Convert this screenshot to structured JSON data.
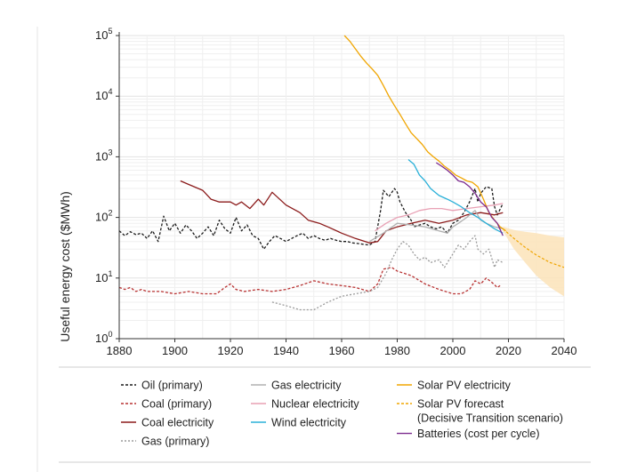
{
  "chart_data": {
    "type": "line",
    "title": "",
    "ylabel": "Useful energy cost ($MWh)",
    "xlabel": "",
    "yscale": "log",
    "xlim": [
      1880,
      2040
    ],
    "ylim": [
      1,
      100000
    ],
    "x_ticks": [
      1880,
      1900,
      1920,
      1940,
      1960,
      1980,
      2000,
      2020,
      2040
    ],
    "y_ticks": [
      {
        "value": 1,
        "base": "10",
        "exp": "0"
      },
      {
        "value": 10,
        "base": "10",
        "exp": "1"
      },
      {
        "value": 100,
        "base": "10",
        "exp": "2"
      },
      {
        "value": 1000,
        "base": "10",
        "exp": "3"
      },
      {
        "value": 10000,
        "base": "10",
        "exp": "4"
      },
      {
        "value": 100000,
        "base": "10",
        "exp": "5"
      }
    ],
    "grid": true,
    "legend_position": "bottom",
    "series": [
      {
        "name": "Oil (primary)",
        "color": "#1a1a1a",
        "dash": "3,2",
        "points": [
          [
            1880,
            60
          ],
          [
            1882,
            50
          ],
          [
            1884,
            58
          ],
          [
            1886,
            52
          ],
          [
            1888,
            55
          ],
          [
            1890,
            45
          ],
          [
            1892,
            60
          ],
          [
            1894,
            40
          ],
          [
            1896,
            105
          ],
          [
            1898,
            60
          ],
          [
            1900,
            80
          ],
          [
            1902,
            55
          ],
          [
            1904,
            75
          ],
          [
            1906,
            60
          ],
          [
            1908,
            45
          ],
          [
            1910,
            55
          ],
          [
            1912,
            70
          ],
          [
            1914,
            50
          ],
          [
            1916,
            90
          ],
          [
            1918,
            65
          ],
          [
            1920,
            55
          ],
          [
            1922,
            100
          ],
          [
            1924,
            60
          ],
          [
            1926,
            75
          ],
          [
            1928,
            50
          ],
          [
            1930,
            45
          ],
          [
            1932,
            30
          ],
          [
            1934,
            40
          ],
          [
            1936,
            50
          ],
          [
            1938,
            45
          ],
          [
            1940,
            40
          ],
          [
            1942,
            45
          ],
          [
            1944,
            50
          ],
          [
            1946,
            55
          ],
          [
            1948,
            45
          ],
          [
            1950,
            50
          ],
          [
            1952,
            45
          ],
          [
            1954,
            42
          ],
          [
            1956,
            45
          ],
          [
            1958,
            42
          ],
          [
            1960,
            40
          ],
          [
            1962,
            40
          ],
          [
            1964,
            38
          ],
          [
            1966,
            37
          ],
          [
            1968,
            36
          ],
          [
            1970,
            35
          ],
          [
            1972,
            40
          ],
          [
            1974,
            130
          ],
          [
            1975,
            280
          ],
          [
            1977,
            220
          ],
          [
            1979,
            300
          ],
          [
            1980,
            260
          ],
          [
            1981,
            180
          ],
          [
            1983,
            120
          ],
          [
            1985,
            90
          ],
          [
            1986,
            70
          ],
          [
            1988,
            75
          ],
          [
            1990,
            80
          ],
          [
            1992,
            70
          ],
          [
            1994,
            65
          ],
          [
            1996,
            70
          ],
          [
            1998,
            55
          ],
          [
            2000,
            80
          ],
          [
            2002,
            90
          ],
          [
            2004,
            120
          ],
          [
            2006,
            180
          ],
          [
            2008,
            300
          ],
          [
            2009,
            180
          ],
          [
            2010,
            250
          ],
          [
            2012,
            320
          ],
          [
            2014,
            300
          ],
          [
            2015,
            150
          ],
          [
            2016,
            110
          ],
          [
            2018,
            170
          ]
        ]
      },
      {
        "name": "Coal (primary)",
        "color": "#b83232",
        "dash": "3,2",
        "points": [
          [
            1880,
            7
          ],
          [
            1882,
            6.5
          ],
          [
            1884,
            7
          ],
          [
            1886,
            6
          ],
          [
            1888,
            6.5
          ],
          [
            1890,
            6
          ],
          [
            1895,
            6
          ],
          [
            1900,
            5.5
          ],
          [
            1905,
            6
          ],
          [
            1910,
            5.5
          ],
          [
            1915,
            5.5
          ],
          [
            1918,
            7
          ],
          [
            1920,
            8
          ],
          [
            1922,
            6.5
          ],
          [
            1925,
            6
          ],
          [
            1930,
            6.5
          ],
          [
            1935,
            6
          ],
          [
            1940,
            6.5
          ],
          [
            1945,
            7.5
          ],
          [
            1950,
            9
          ],
          [
            1955,
            8
          ],
          [
            1960,
            7.5
          ],
          [
            1965,
            7
          ],
          [
            1970,
            6
          ],
          [
            1973,
            8
          ],
          [
            1975,
            14
          ],
          [
            1978,
            15
          ],
          [
            1980,
            13
          ],
          [
            1985,
            11
          ],
          [
            1990,
            8
          ],
          [
            1995,
            6.5
          ],
          [
            2000,
            5.5
          ],
          [
            2003,
            5.5
          ],
          [
            2006,
            6.5
          ],
          [
            2008,
            9
          ],
          [
            2010,
            8
          ],
          [
            2012,
            10
          ],
          [
            2014,
            8.5
          ],
          [
            2016,
            7
          ],
          [
            2017,
            7.5
          ]
        ]
      },
      {
        "name": "Coal electricity",
        "color": "#8b1a1a",
        "dash": "",
        "points": [
          [
            1902,
            400
          ],
          [
            1905,
            350
          ],
          [
            1910,
            280
          ],
          [
            1913,
            200
          ],
          [
            1916,
            180
          ],
          [
            1920,
            180
          ],
          [
            1922,
            160
          ],
          [
            1924,
            180
          ],
          [
            1927,
            140
          ],
          [
            1930,
            200
          ],
          [
            1932,
            160
          ],
          [
            1935,
            260
          ],
          [
            1940,
            160
          ],
          [
            1945,
            120
          ],
          [
            1948,
            90
          ],
          [
            1952,
            80
          ],
          [
            1955,
            70
          ],
          [
            1960,
            55
          ],
          [
            1965,
            45
          ],
          [
            1970,
            38
          ],
          [
            1973,
            40
          ],
          [
            1976,
            60
          ],
          [
            1980,
            70
          ],
          [
            1985,
            80
          ],
          [
            1990,
            90
          ],
          [
            1995,
            80
          ],
          [
            2000,
            90
          ],
          [
            2005,
            110
          ],
          [
            2010,
            120
          ],
          [
            2015,
            110
          ],
          [
            2018,
            120
          ]
        ]
      },
      {
        "name": "Gas (primary)",
        "color": "#9a9a9a",
        "dash": "2,2",
        "points": [
          [
            1935,
            4
          ],
          [
            1940,
            3.5
          ],
          [
            1945,
            3
          ],
          [
            1950,
            3
          ],
          [
            1955,
            4
          ],
          [
            1960,
            5
          ],
          [
            1965,
            5.5
          ],
          [
            1970,
            6
          ],
          [
            1973,
            7
          ],
          [
            1976,
            12
          ],
          [
            1978,
            20
          ],
          [
            1980,
            30
          ],
          [
            1982,
            40
          ],
          [
            1984,
            35
          ],
          [
            1986,
            25
          ],
          [
            1988,
            20
          ],
          [
            1990,
            22
          ],
          [
            1992,
            18
          ],
          [
            1995,
            20
          ],
          [
            1997,
            15
          ],
          [
            2000,
            25
          ],
          [
            2002,
            35
          ],
          [
            2004,
            30
          ],
          [
            2006,
            40
          ],
          [
            2008,
            50
          ],
          [
            2009,
            30
          ],
          [
            2011,
            25
          ],
          [
            2013,
            30
          ],
          [
            2015,
            15
          ],
          [
            2016,
            20
          ],
          [
            2018,
            18
          ]
        ]
      },
      {
        "name": "Gas electricity",
        "color": "#b0b0b0",
        "dash": "",
        "points": [
          [
            1970,
            40
          ],
          [
            1975,
            55
          ],
          [
            1980,
            80
          ],
          [
            1985,
            75
          ],
          [
            1990,
            70
          ],
          [
            1995,
            60
          ],
          [
            1998,
            55
          ],
          [
            2000,
            70
          ],
          [
            2002,
            80
          ],
          [
            2005,
            100
          ],
          [
            2008,
            130
          ],
          [
            2010,
            90
          ],
          [
            2012,
            80
          ],
          [
            2015,
            70
          ],
          [
            2018,
            65
          ]
        ]
      },
      {
        "name": "Nuclear electricity",
        "color": "#e8a0b4",
        "dash": "",
        "points": [
          [
            1972,
            60
          ],
          [
            1976,
            80
          ],
          [
            1980,
            100
          ],
          [
            1984,
            110
          ],
          [
            1988,
            130
          ],
          [
            1992,
            140
          ],
          [
            1996,
            140
          ],
          [
            2000,
            130
          ],
          [
            2005,
            140
          ],
          [
            2010,
            150
          ],
          [
            2015,
            160
          ],
          [
            2018,
            170
          ]
        ]
      },
      {
        "name": "Wind electricity",
        "color": "#2ab0d8",
        "dash": "",
        "points": [
          [
            1984,
            900
          ],
          [
            1986,
            750
          ],
          [
            1988,
            500
          ],
          [
            1990,
            400
          ],
          [
            1992,
            300
          ],
          [
            1995,
            230
          ],
          [
            1998,
            200
          ],
          [
            2000,
            180
          ],
          [
            2003,
            150
          ],
          [
            2006,
            120
          ],
          [
            2009,
            100
          ],
          [
            2012,
            80
          ],
          [
            2015,
            65
          ],
          [
            2018,
            55
          ]
        ]
      },
      {
        "name": "Solar PV electricity",
        "color": "#f0a500",
        "dash": "",
        "points": [
          [
            1961,
            100000
          ],
          [
            1963,
            80000
          ],
          [
            1965,
            60000
          ],
          [
            1967,
            45000
          ],
          [
            1969,
            35000
          ],
          [
            1971,
            28000
          ],
          [
            1973,
            22000
          ],
          [
            1975,
            15000
          ],
          [
            1977,
            10000
          ],
          [
            1979,
            7000
          ],
          [
            1981,
            5000
          ],
          [
            1983,
            3500
          ],
          [
            1985,
            2500
          ],
          [
            1987,
            2000
          ],
          [
            1989,
            1600
          ],
          [
            1991,
            1200
          ],
          [
            1993,
            1000
          ],
          [
            1995,
            850
          ],
          [
            1997,
            700
          ],
          [
            1999,
            600
          ],
          [
            2001,
            500
          ],
          [
            2003,
            450
          ],
          [
            2005,
            400
          ],
          [
            2007,
            380
          ],
          [
            2009,
            320
          ],
          [
            2011,
            200
          ],
          [
            2013,
            120
          ],
          [
            2015,
            90
          ],
          [
            2017,
            70
          ],
          [
            2019,
            60
          ]
        ]
      },
      {
        "name": "Batteries (cost per cycle)",
        "color": "#7b2a8e",
        "dash": "",
        "points": [
          [
            1994,
            800
          ],
          [
            1996,
            700
          ],
          [
            1998,
            600
          ],
          [
            2000,
            500
          ],
          [
            2002,
            400
          ],
          [
            2004,
            380
          ],
          [
            2006,
            320
          ],
          [
            2008,
            250
          ],
          [
            2010,
            180
          ],
          [
            2012,
            150
          ],
          [
            2014,
            100
          ],
          [
            2016,
            80
          ],
          [
            2018,
            50
          ]
        ]
      }
    ],
    "forecast": {
      "name": "Solar PV forecast\n(Decisive Transition scenario)",
      "color": "#f0a500",
      "dash": "3,2",
      "points": [
        [
          2018,
          65
        ],
        [
          2022,
          45
        ],
        [
          2026,
          32
        ],
        [
          2030,
          24
        ],
        [
          2035,
          18
        ],
        [
          2040,
          15
        ]
      ],
      "band_upper": [
        [
          2018,
          70
        ],
        [
          2022,
          62
        ],
        [
          2026,
          58
        ],
        [
          2030,
          55
        ],
        [
          2035,
          50
        ],
        [
          2040,
          47
        ]
      ],
      "band_lower": [
        [
          2018,
          60
        ],
        [
          2022,
          30
        ],
        [
          2026,
          18
        ],
        [
          2030,
          11
        ],
        [
          2035,
          7
        ],
        [
          2040,
          5
        ]
      ],
      "band_color": "#fbe3b8"
    }
  },
  "legend": {
    "items": [
      {
        "label": "Oil (primary)",
        "color": "#1a1a1a",
        "dash": "3,2",
        "col": 0,
        "row": 0
      },
      {
        "label": "Coal (primary)",
        "color": "#b83232",
        "dash": "3,2",
        "col": 0,
        "row": 1
      },
      {
        "label": "Coal electricity",
        "color": "#8b1a1a",
        "dash": "",
        "col": 0,
        "row": 2
      },
      {
        "label": "Gas (primary)",
        "color": "#9a9a9a",
        "dash": "2,2",
        "col": 0,
        "row": 3
      },
      {
        "label": "Gas electricity",
        "color": "#b0b0b0",
        "dash": "",
        "col": 1,
        "row": 0
      },
      {
        "label": "Nuclear electricity",
        "color": "#e8a0b4",
        "dash": "",
        "col": 1,
        "row": 1
      },
      {
        "label": "Wind electricity",
        "color": "#2ab0d8",
        "dash": "",
        "col": 1,
        "row": 2
      },
      {
        "label": "Solar PV electricity",
        "color": "#f0a500",
        "dash": "",
        "col": 2,
        "row": 0
      },
      {
        "label": "Solar PV forecast",
        "label2": "(Decisive Transition scenario)",
        "color": "#f0a500",
        "dash": "3,2",
        "col": 2,
        "row": 1
      },
      {
        "label": "Batteries (cost per cycle)",
        "color": "#7b2a8e",
        "dash": "",
        "col": 2,
        "row": 2.6
      }
    ]
  }
}
